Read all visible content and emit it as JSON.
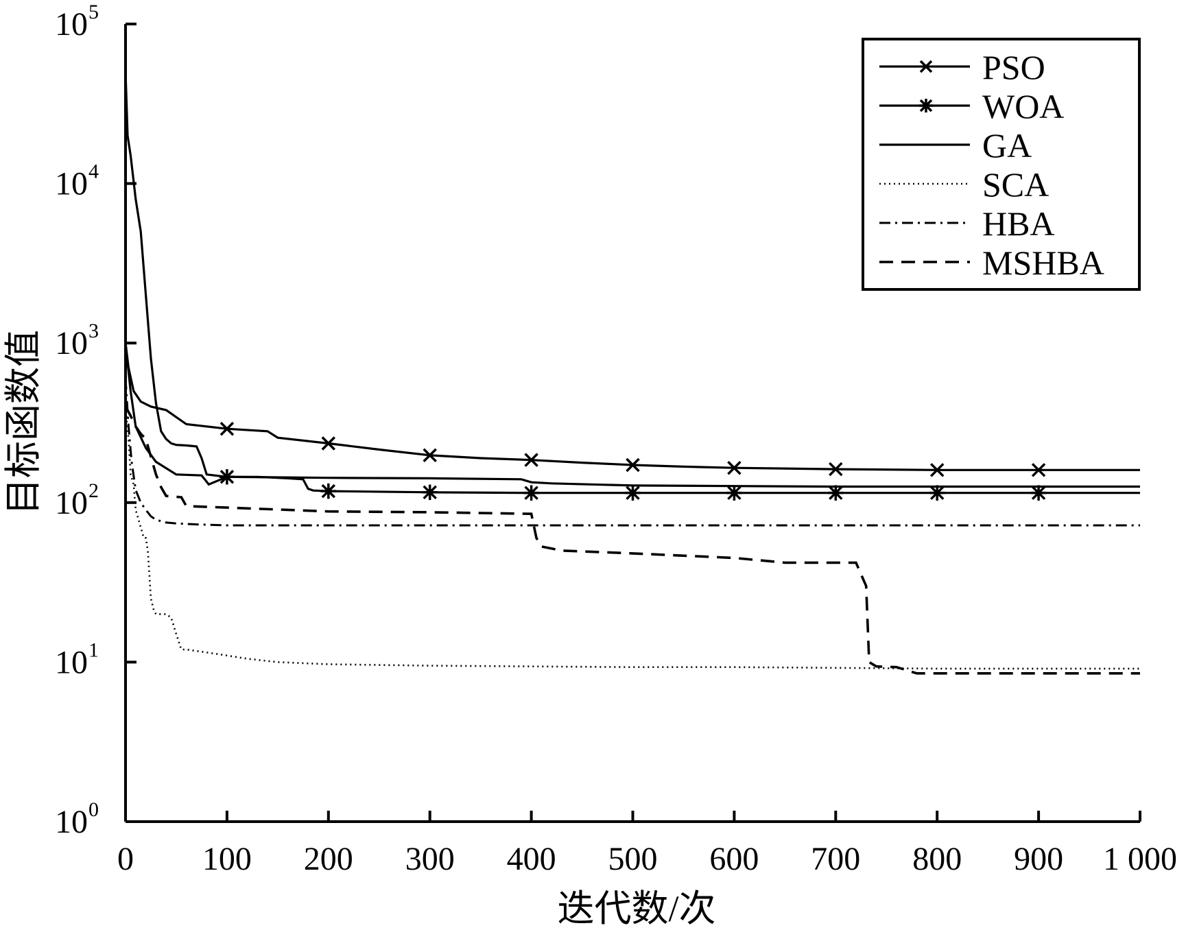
{
  "chart_data": {
    "type": "line",
    "xlabel": "迭代数/次",
    "ylabel": "目标函数值",
    "xlim": [
      0,
      1000
    ],
    "ylim": [
      1,
      100000
    ],
    "yscale": "log",
    "grid": false,
    "legend_position": "top-right",
    "xticks": [
      {
        "value": 0,
        "label": "0"
      },
      {
        "value": 100,
        "label": "100"
      },
      {
        "value": 200,
        "label": "200"
      },
      {
        "value": 300,
        "label": "300"
      },
      {
        "value": 400,
        "label": "400"
      },
      {
        "value": 500,
        "label": "500"
      },
      {
        "value": 600,
        "label": "600"
      },
      {
        "value": 700,
        "label": "700"
      },
      {
        "value": 800,
        "label": "800"
      },
      {
        "value": 900,
        "label": "900"
      },
      {
        "value": 1000,
        "label": "1 000"
      }
    ],
    "yticks": [
      {
        "value": 1,
        "base": "10",
        "exp": "0"
      },
      {
        "value": 10,
        "base": "10",
        "exp": "1"
      },
      {
        "value": 100,
        "base": "10",
        "exp": "2"
      },
      {
        "value": 1000,
        "base": "10",
        "exp": "3"
      },
      {
        "value": 10000,
        "base": "10",
        "exp": "4"
      },
      {
        "value": 100000,
        "base": "10",
        "exp": "5"
      }
    ],
    "series": [
      {
        "name": "PSO",
        "style": "solid",
        "marker": "x",
        "x": [
          0,
          3,
          8,
          15,
          25,
          40,
          60,
          100,
          140,
          150,
          200,
          250,
          300,
          350,
          400,
          450,
          500,
          550,
          600,
          700,
          800,
          900,
          1000
        ],
        "y": [
          1000,
          700,
          500,
          430,
          400,
          380,
          310,
          290,
          280,
          255,
          235,
          215,
          198,
          190,
          185,
          178,
          172,
          168,
          165,
          162,
          160,
          160,
          160
        ],
        "markers_x": [
          100,
          200,
          300,
          400,
          500,
          600,
          700,
          800,
          900
        ]
      },
      {
        "name": "WOA",
        "style": "solid",
        "marker": "asterisk",
        "x": [
          0,
          5,
          10,
          20,
          30,
          50,
          75,
          78,
          82,
          100,
          130,
          160,
          175,
          180,
          185,
          200,
          300,
          400,
          500,
          700,
          1000
        ],
        "y": [
          1000,
          500,
          300,
          220,
          180,
          150,
          148,
          140,
          130,
          145,
          145,
          142,
          140,
          122,
          119,
          118,
          116,
          115,
          115,
          115,
          115
        ],
        "markers_x": [
          100,
          200,
          300,
          400,
          500,
          600,
          700,
          800,
          900
        ]
      },
      {
        "name": "GA",
        "style": "solid",
        "marker": "none",
        "x": [
          0,
          2,
          5,
          10,
          15,
          20,
          25,
          30,
          35,
          40,
          45,
          50,
          60,
          70,
          75,
          80,
          100,
          200,
          300,
          390,
          400,
          420,
          500,
          600,
          700,
          800,
          1000
        ],
        "y": [
          50000,
          20000,
          15000,
          8000,
          5000,
          2000,
          800,
          420,
          280,
          250,
          235,
          230,
          228,
          225,
          190,
          150,
          145,
          143,
          142,
          140,
          134,
          132,
          128,
          127,
          126,
          126,
          126
        ]
      },
      {
        "name": "SCA",
        "style": "dotted",
        "marker": "none",
        "x": [
          0,
          3,
          5,
          8,
          10,
          15,
          18,
          20,
          22,
          25,
          28,
          30,
          40,
          45,
          50,
          55,
          60,
          80,
          100,
          120,
          150,
          200,
          300,
          400,
          500,
          600,
          700,
          800,
          900,
          1000
        ],
        "y": [
          400,
          250,
          150,
          130,
          90,
          70,
          60,
          60,
          50,
          25,
          21,
          20,
          20,
          19,
          15,
          12,
          12,
          11.5,
          11,
          10.5,
          10,
          9.7,
          9.5,
          9.4,
          9.3,
          9.3,
          9.2,
          9.1,
          9.1,
          9.1
        ]
      },
      {
        "name": "HBA",
        "style": "dashdot",
        "marker": "none",
        "x": [
          0,
          3,
          6,
          10,
          15,
          20,
          25,
          30,
          40,
          50,
          70,
          100,
          200,
          400,
          700,
          1000
        ],
        "y": [
          600,
          300,
          180,
          120,
          100,
          90,
          82,
          78,
          75,
          74,
          73,
          72,
          72,
          72,
          72,
          72
        ]
      },
      {
        "name": "MSHBA",
        "style": "dashed",
        "marker": "none",
        "x": [
          0,
          5,
          10,
          15,
          20,
          30,
          35,
          40,
          55,
          60,
          100,
          200,
          300,
          350,
          400,
          405,
          410,
          430,
          500,
          600,
          650,
          720,
          730,
          733,
          740,
          760,
          780,
          1000
        ],
        "y": [
          400,
          350,
          300,
          270,
          250,
          150,
          125,
          110,
          108,
          95,
          93,
          88,
          87,
          86,
          85,
          60,
          53,
          50,
          48,
          45,
          42,
          42,
          30,
          10,
          9.4,
          9.3,
          8.5,
          8.5
        ]
      }
    ]
  }
}
